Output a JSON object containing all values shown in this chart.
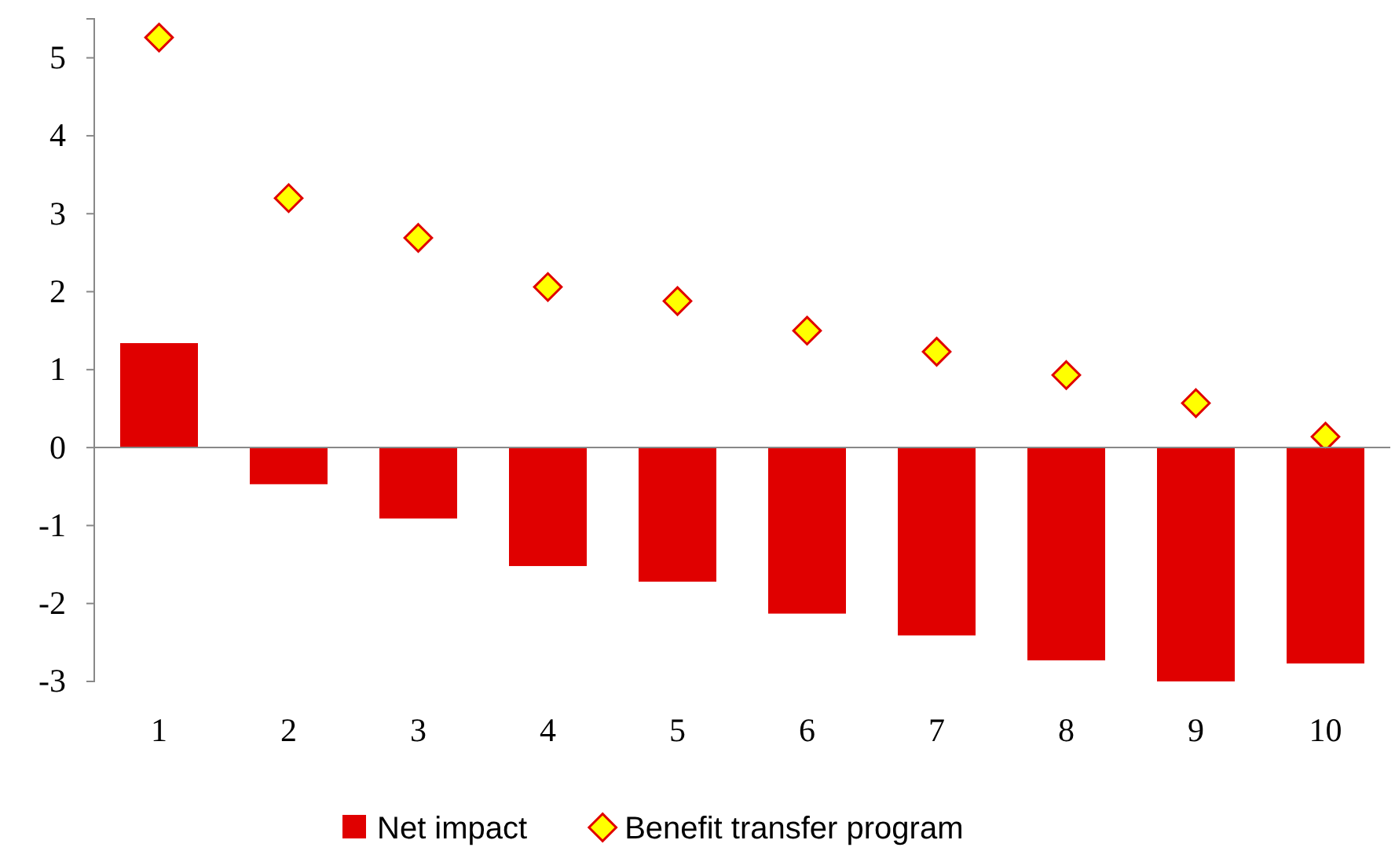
{
  "chart_data": {
    "type": "bar",
    "categories": [
      "1",
      "2",
      "3",
      "4",
      "5",
      "6",
      "7",
      "8",
      "9",
      "10"
    ],
    "series": [
      {
        "name": "Net impact",
        "color": "#e00000",
        "values": [
          1.34,
          -0.47,
          -0.91,
          -1.52,
          -1.72,
          -2.13,
          -2.41,
          -2.73,
          -3.0,
          -2.77
        ]
      },
      {
        "name": "Benefit transfer program",
        "type": "scatter",
        "color": "#ffff00",
        "marker": "diamond",
        "values": [
          5.26,
          3.2,
          2.69,
          2.06,
          1.88,
          1.5,
          1.23,
          0.93,
          0.57,
          0.14
        ]
      }
    ],
    "ylim": [
      -3,
      5.5
    ],
    "yticks": [
      -3,
      -2,
      -1,
      0,
      1,
      2,
      3,
      4,
      5
    ],
    "legend": "bottom"
  }
}
